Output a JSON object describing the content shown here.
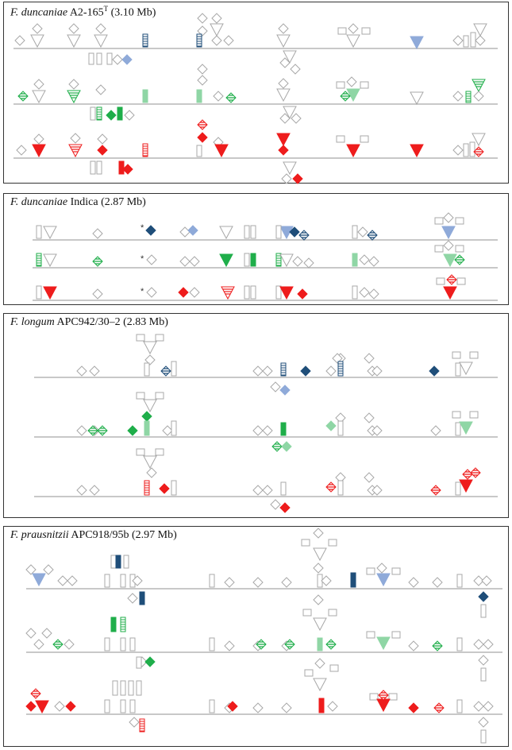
{
  "colors": {
    "grey": "#b5b5b5",
    "navy": "#1f4e79",
    "blue_light": "#8faad9",
    "green": "#1fae4a",
    "green_light": "#8fd6a5",
    "red": "#ee1c1c",
    "red_light": "#f08080",
    "outline": "#a8a8a8"
  },
  "panels": [
    {
      "id": "duncaniae-a2",
      "title_species": "F. duncaniae",
      "title_strain": "A2-165",
      "title_sup": "T",
      "title_size": "(3.10 Mb)",
      "tracks": 3,
      "track_colors": [
        "blue",
        "green",
        "red"
      ]
    },
    {
      "id": "duncaniae-indica",
      "title_species": "F. duncaniae",
      "title_strain": "Indica",
      "title_sup": "",
      "title_size": "(2.87 Mb)",
      "tracks": 3,
      "track_colors": [
        "blue",
        "green",
        "red"
      ],
      "marker": "*"
    },
    {
      "id": "longum",
      "title_species": "F. longum",
      "title_strain": "APC942/30–2",
      "title_sup": "",
      "title_size": "(2.83 Mb)",
      "tracks": 3,
      "track_colors": [
        "blue",
        "green",
        "red"
      ]
    },
    {
      "id": "prausnitzii",
      "title_species": "F. prausnitzii",
      "title_strain": "APC918/95b",
      "title_sup": "",
      "title_size": "(2.97 Mb)",
      "tracks": 3,
      "track_colors": [
        "blue",
        "green",
        "red"
      ]
    }
  ]
}
